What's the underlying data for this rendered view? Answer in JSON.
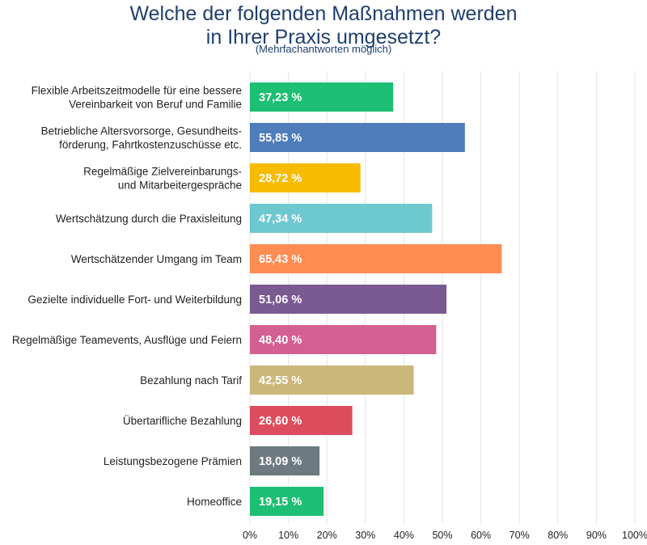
{
  "chart_data": {
    "type": "bar",
    "orientation": "horizontal",
    "title_lines": [
      "Welche der folgenden Maßnahmen werden",
      "in Ihrer Praxis umgesetzt?"
    ],
    "subtitle": "(Mehrfachantworten möglich)",
    "categories": [
      [
        "Flexible Arbeitszeitmodelle für eine bessere",
        "Vereinbarkeit von Beruf und Familie"
      ],
      [
        "Betriebliche Altersvorsorge, Gesundheits-",
        "förderung, Fahrtkostenzuschüsse etc."
      ],
      [
        "Regelmäßige Zielvereinbarungs-",
        "und Mitarbeitergespräche"
      ],
      [
        "Wertschätzung durch die Praxisleitung"
      ],
      [
        "Wertschätzender Umgang im Team"
      ],
      [
        "Gezielte individuelle Fort- und Weiterbildung"
      ],
      [
        "Regelmäßige Teamevents, Ausflüge und Feiern"
      ],
      [
        "Bezahlung nach Tarif"
      ],
      [
        "Übertarifliche Bezahlung"
      ],
      [
        "Leistungsbezogene Prämien"
      ],
      [
        "Homeoffice"
      ]
    ],
    "values": [
      37.23,
      55.85,
      28.72,
      47.34,
      65.43,
      51.06,
      48.4,
      42.55,
      26.6,
      18.09,
      19.15
    ],
    "value_labels": [
      "37,23 %",
      "55,85 %",
      "28,72 %",
      "47,34 %",
      "65,43 %",
      "51,06 %",
      "48,40 %",
      "42,55 %",
      "26,60 %",
      "18,09 %",
      "19,15 %"
    ],
    "colors": [
      "#1cbf73",
      "#4f7cba",
      "#f7bb00",
      "#6ec8cf",
      "#ff8c52",
      "#7a5a91",
      "#d45f91",
      "#cbb77a",
      "#dd4c5d",
      "#6d7a80",
      "#1cbf73"
    ],
    "xlim": [
      0,
      100
    ],
    "xticks": [
      0,
      10,
      20,
      30,
      40,
      50,
      60,
      70,
      80,
      90,
      100
    ],
    "xtick_labels": [
      "0%",
      "10%",
      "20%",
      "30%",
      "40%",
      "50%",
      "60%",
      "70%",
      "80%",
      "90%",
      "100%"
    ],
    "grid": true,
    "legend": "none",
    "text_color": "#1f3f6e",
    "grid_color": "#e3e3e3"
  }
}
